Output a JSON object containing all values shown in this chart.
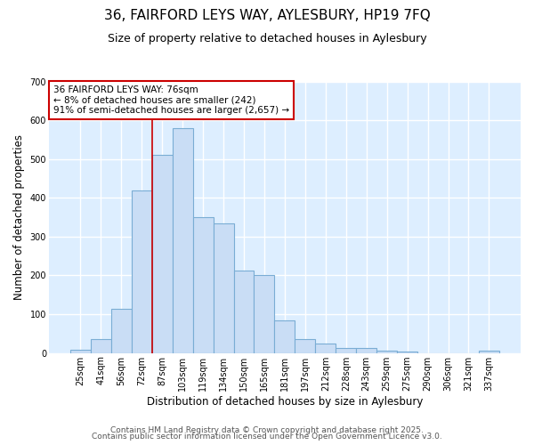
{
  "title_line1": "36, FAIRFORD LEYS WAY, AYLESBURY, HP19 7FQ",
  "title_line2": "Size of property relative to detached houses in Aylesbury",
  "xlabel": "Distribution of detached houses by size in Aylesbury",
  "ylabel": "Number of detached properties",
  "categories": [
    "25sqm",
    "41sqm",
    "56sqm",
    "72sqm",
    "87sqm",
    "103sqm",
    "119sqm",
    "134sqm",
    "150sqm",
    "165sqm",
    "181sqm",
    "197sqm",
    "212sqm",
    "228sqm",
    "243sqm",
    "259sqm",
    "275sqm",
    "290sqm",
    "306sqm",
    "321sqm",
    "337sqm"
  ],
  "values": [
    8,
    35,
    115,
    420,
    510,
    580,
    350,
    335,
    213,
    200,
    85,
    35,
    25,
    12,
    12,
    5,
    3,
    0,
    0,
    0,
    5
  ],
  "bar_color": "#c9ddf5",
  "bar_edge_color": "#7aadd4",
  "red_line_index": 3.5,
  "annotation_line1": "36 FAIRFORD LEYS WAY: 76sqm",
  "annotation_line2": "← 8% of detached houses are smaller (242)",
  "annotation_line3": "91% of semi-detached houses are larger (2,657) →",
  "annotation_box_color": "#ffffff",
  "annotation_box_edge": "#cc0000",
  "footer_line1": "Contains HM Land Registry data © Crown copyright and database right 2025.",
  "footer_line2": "Contains public sector information licensed under the Open Government Licence v3.0.",
  "fig_bg_color": "#ffffff",
  "plot_bg_color": "#ddeeff",
  "ylim": [
    0,
    700
  ],
  "yticks": [
    0,
    100,
    200,
    300,
    400,
    500,
    600,
    700
  ],
  "title1_fontsize": 11,
  "title2_fontsize": 9,
  "axis_label_fontsize": 8.5,
  "tick_fontsize": 7,
  "annotation_fontsize": 7.5,
  "footer_fontsize": 6.5
}
